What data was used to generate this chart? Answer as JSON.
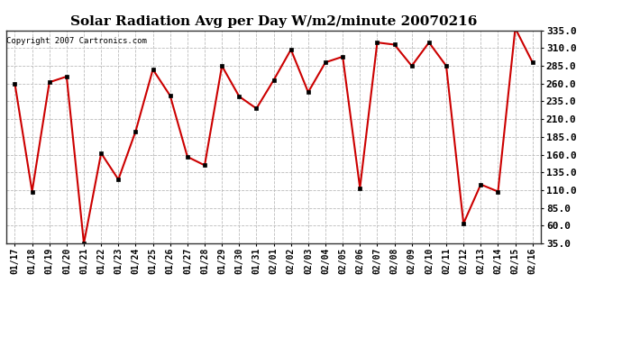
{
  "title": "Solar Radiation Avg per Day W/m2/minute 20070216",
  "copyright": "Copyright 2007 Cartronics.com",
  "dates": [
    "01/17",
    "01/18",
    "01/19",
    "01/20",
    "01/21",
    "01/22",
    "01/23",
    "01/24",
    "01/25",
    "01/26",
    "01/27",
    "01/28",
    "01/29",
    "01/30",
    "01/31",
    "02/01",
    "02/02",
    "02/03",
    "02/04",
    "02/05",
    "02/06",
    "02/07",
    "02/08",
    "02/09",
    "02/10",
    "02/11",
    "02/12",
    "02/13",
    "02/14",
    "02/15",
    "02/16"
  ],
  "values": [
    260,
    108,
    262,
    270,
    35,
    162,
    125,
    193,
    280,
    243,
    157,
    145,
    285,
    242,
    225,
    265,
    308,
    248,
    290,
    298,
    113,
    318,
    315,
    285,
    318,
    285,
    63,
    118,
    108,
    338,
    290
  ],
  "line_color": "#cc0000",
  "marker_color": "#000000",
  "bg_color": "#ffffff",
  "plot_bg_color": "#ffffff",
  "grid_color": "#bbbbbb",
  "ylim": [
    35,
    335
  ],
  "yticks": [
    35.0,
    60.0,
    85.0,
    110.0,
    135.0,
    160.0,
    185.0,
    210.0,
    235.0,
    260.0,
    285.0,
    310.0,
    335.0
  ],
  "title_fontsize": 11,
  "copyright_fontsize": 6.5,
  "tick_fontsize": 8,
  "xtick_fontsize": 7
}
